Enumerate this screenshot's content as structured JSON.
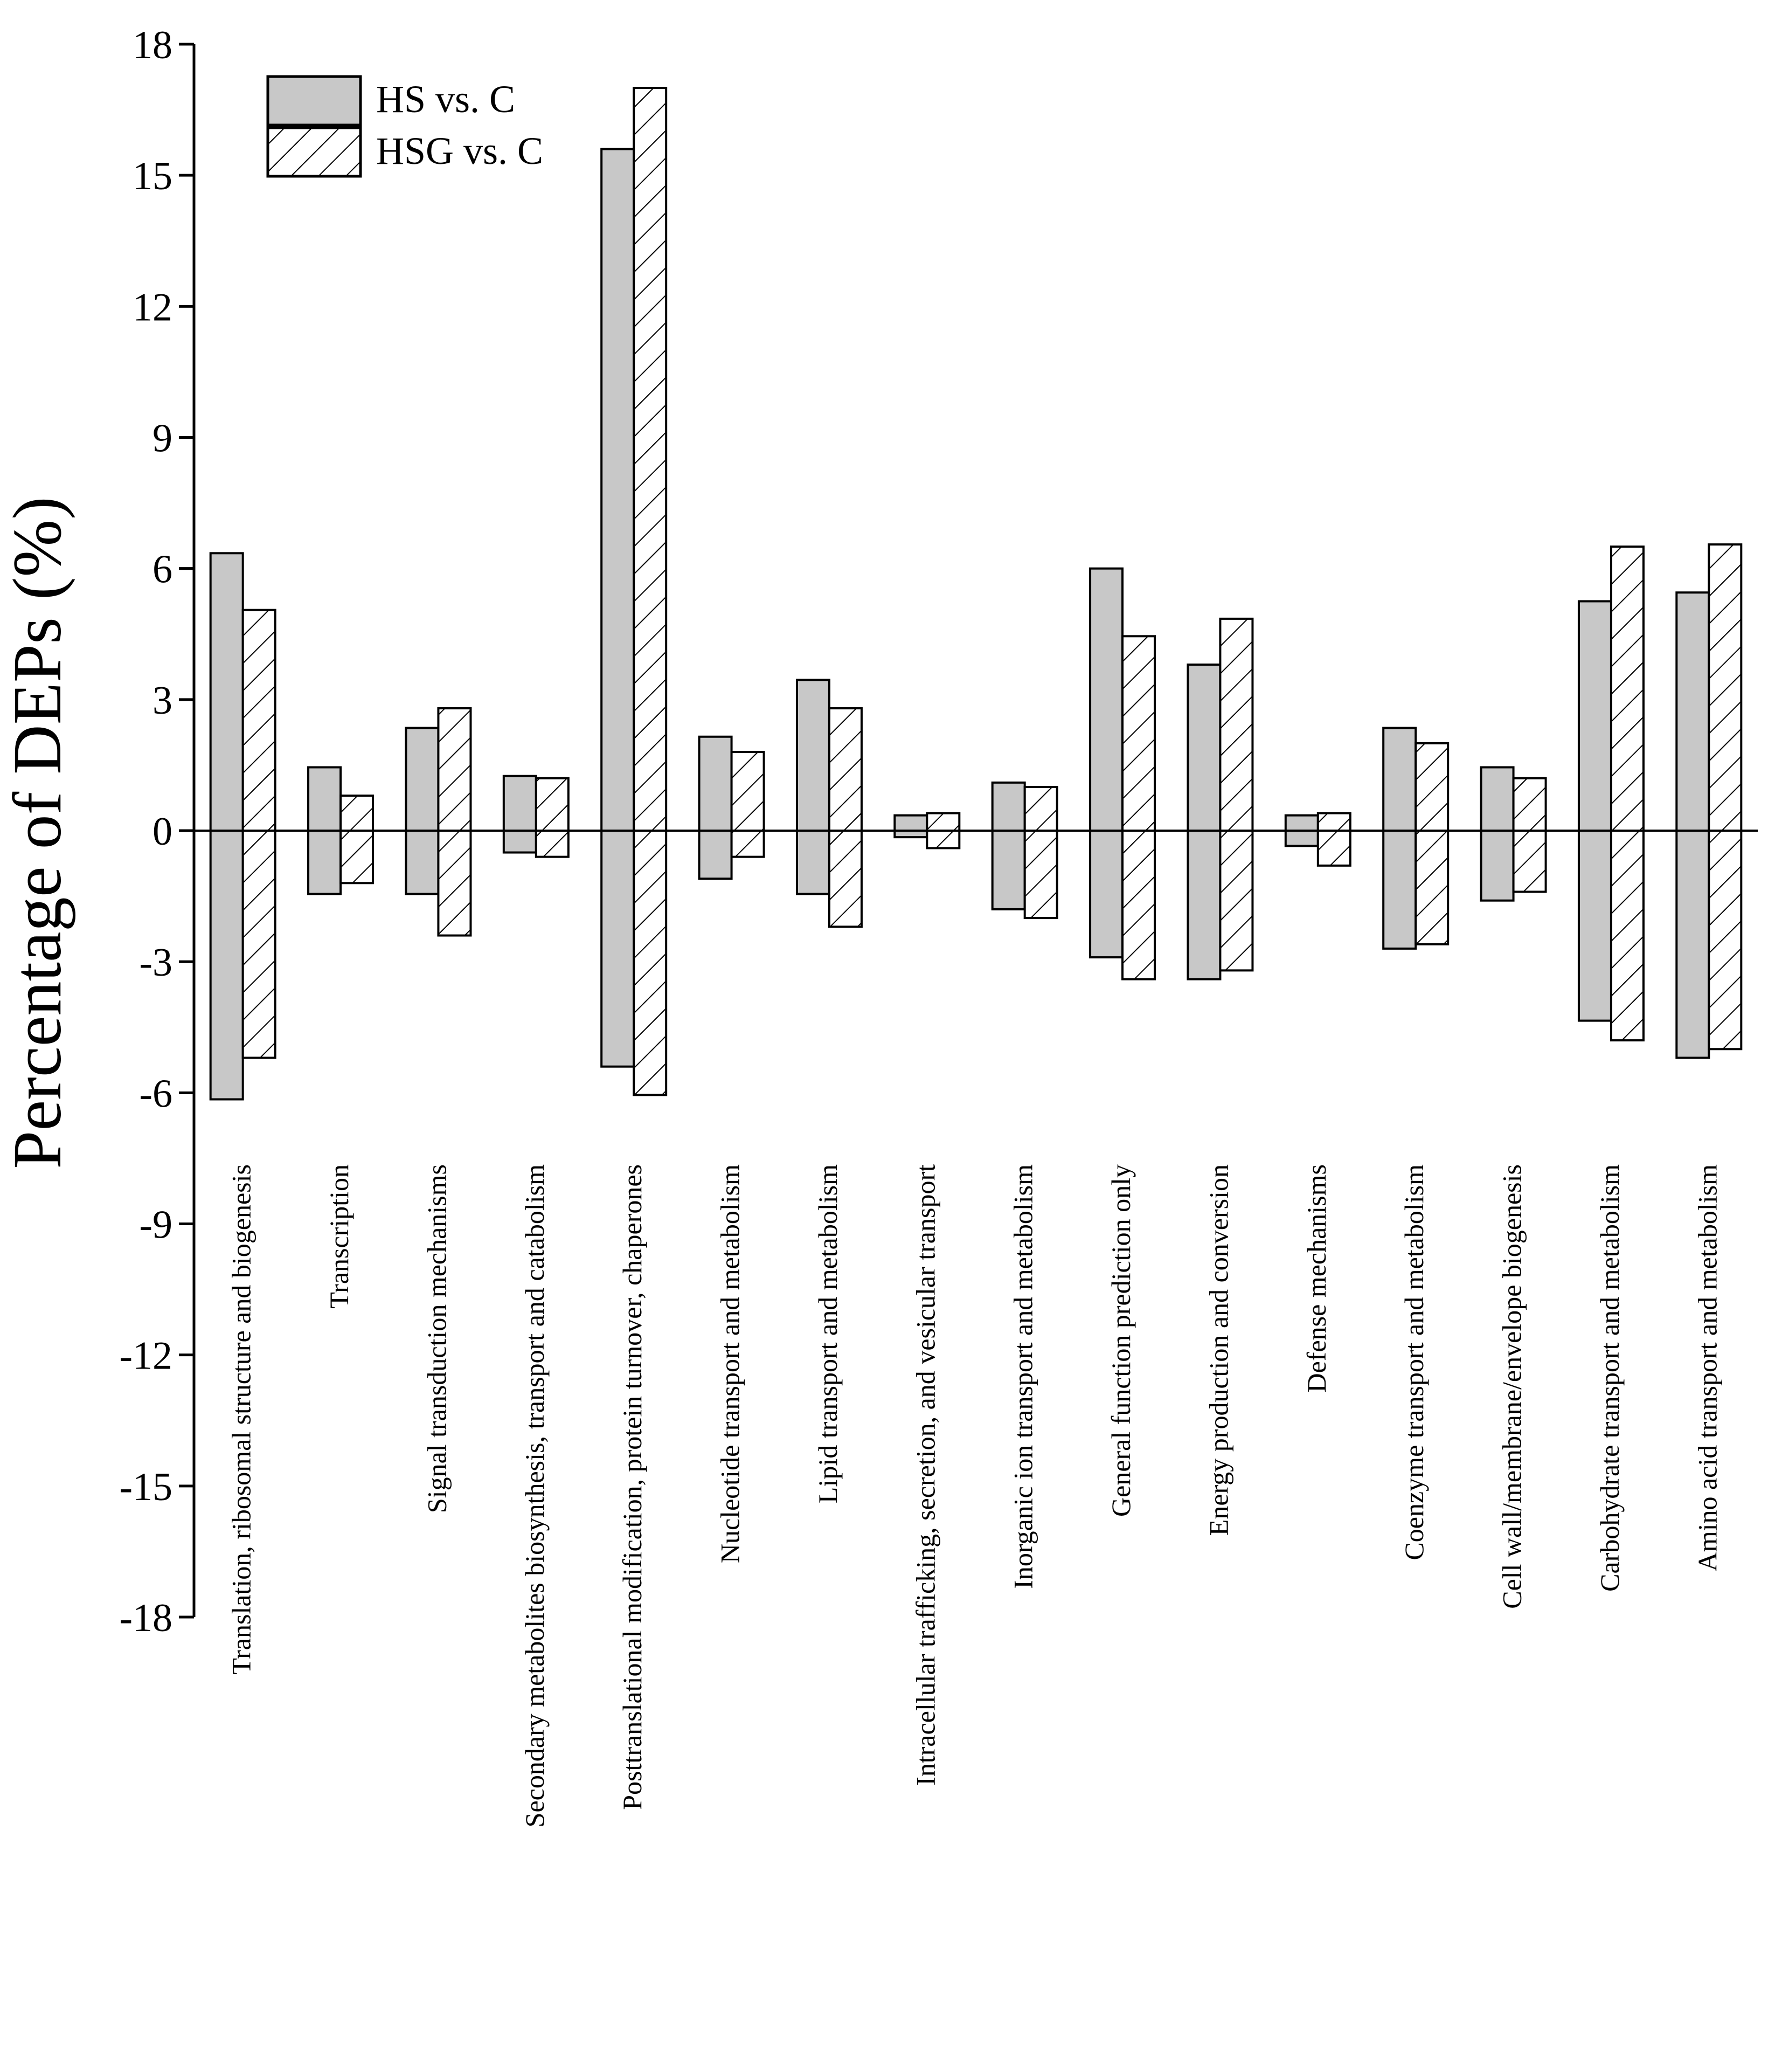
{
  "chart_data": {
    "type": "bar",
    "title": "",
    "xlabel": "",
    "ylabel": "Percentage of DEPs (%)",
    "ylim": [
      -18,
      18
    ],
    "yticks": [
      "18",
      "15",
      "12",
      "9",
      "6",
      "3",
      "0",
      "-3",
      "-6",
      "-9",
      "-12",
      "-15",
      "-18"
    ],
    "legend_position": "top-left",
    "categories": [
      "Translation, ribosomal structure and biogenesis",
      "Transcription",
      "Signal transduction mechanisms",
      "Secondary metabolites biosynthesis, transport and catabolism",
      "Posttranslational modification, protein turnover, chaperones",
      "Nucleotide transport and metabolism",
      "Lipid transport and metabolism",
      "Intracellular trafficking, secretion, and vesicular transport",
      "Inorganic ion transport and metabolism",
      "General function prediction only",
      "Energy production and conversion",
      "Defense mechanisms",
      "Coenzyme transport and metabolism",
      "Cell wall/membrane/envelope biogenesis",
      "Carbohydrate transport and metabolism",
      "Amino acid transport and metabolism"
    ],
    "series": [
      {
        "name": "HS vs. C",
        "fill": "solid-gray",
        "color": "#c8c8c8",
        "up": [
          6.35,
          1.45,
          2.35,
          1.25,
          15.6,
          2.15,
          3.45,
          0.35,
          1.1,
          6.0,
          3.8,
          0.35,
          2.35,
          1.45,
          5.25,
          5.45
        ],
        "down": [
          -6.15,
          -1.45,
          -1.45,
          -0.5,
          -5.4,
          -1.1,
          -1.45,
          -0.15,
          -1.8,
          -2.9,
          -3.4,
          -0.35,
          -2.7,
          -1.6,
          -4.35,
          -5.2
        ]
      },
      {
        "name": "HSG vs. C",
        "fill": "hatched",
        "color": "#ffffff",
        "up": [
          5.05,
          0.8,
          2.8,
          1.2,
          17.0,
          1.8,
          2.8,
          0.4,
          1.0,
          4.45,
          4.85,
          0.4,
          2.0,
          1.2,
          6.5,
          6.55
        ],
        "down": [
          -5.2,
          -1.2,
          -2.4,
          -0.6,
          -6.05,
          -0.6,
          -2.2,
          -0.4,
          -2.0,
          -3.4,
          -3.2,
          -0.8,
          -2.6,
          -1.4,
          -4.8,
          -5.0
        ]
      }
    ]
  }
}
